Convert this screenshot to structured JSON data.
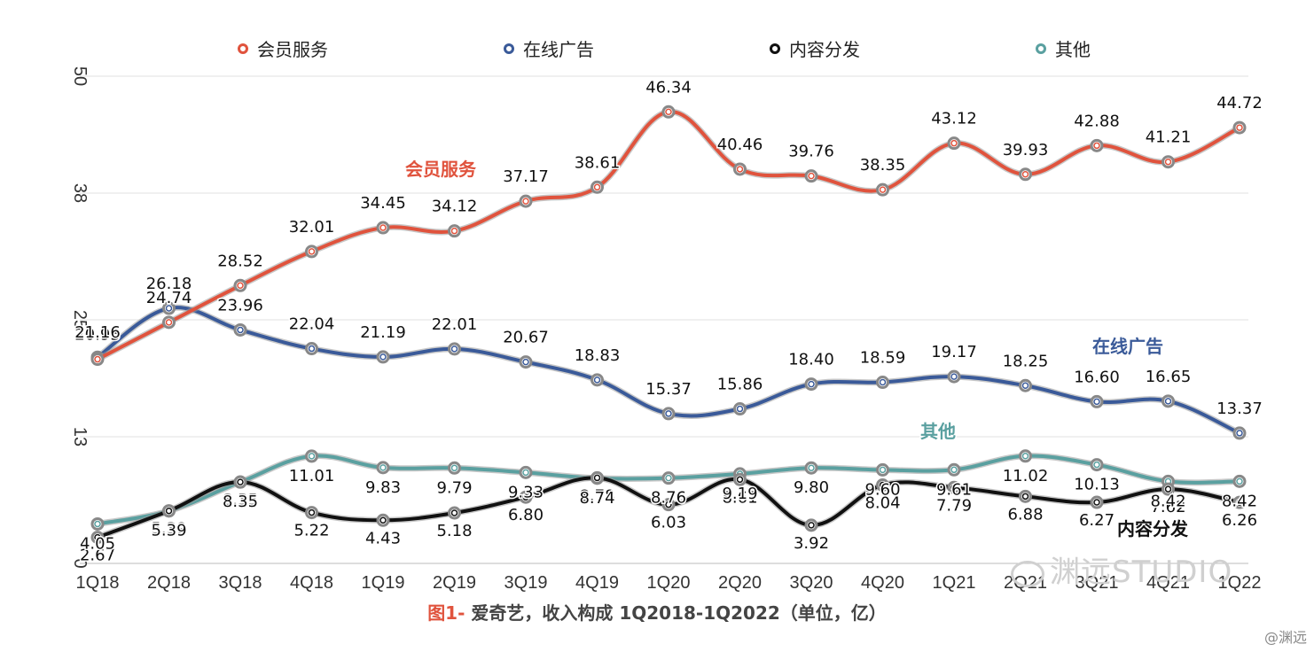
{
  "legend": [
    {
      "label": "会员服务",
      "color": "#e0533d"
    },
    {
      "label": "在线广告",
      "color": "#3a5a99"
    },
    {
      "label": "内容分发",
      "color": "#111111"
    },
    {
      "label": "其他",
      "color": "#5aa0a0"
    }
  ],
  "caption": {
    "prefix": "图1-",
    "text": " 爱奇艺，收入构成 1Q2018-1Q2022（单位，亿）"
  },
  "watermark": "渊远STUDIO",
  "credit": "@渊远",
  "chart_data": {
    "type": "line",
    "categories": [
      "1Q18",
      "2Q18",
      "3Q18",
      "4Q18",
      "1Q19",
      "2Q19",
      "3Q19",
      "4Q19",
      "1Q20",
      "2Q20",
      "3Q20",
      "4Q20",
      "1Q21",
      "2Q21",
      "3Q21",
      "4Q21",
      "1Q22"
    ],
    "ylim": [
      0,
      50
    ],
    "yticks": [
      0,
      13,
      25,
      38,
      50
    ],
    "grid": true,
    "legend_position": "top",
    "series": [
      {
        "name": "会员服务",
        "color": "#e0533d",
        "values": [
          20.95,
          24.74,
          28.52,
          32.01,
          34.45,
          34.12,
          37.17,
          38.61,
          46.34,
          40.46,
          39.76,
          38.35,
          43.12,
          39.93,
          42.88,
          41.21,
          44.72
        ],
        "labels": [
          "20.95",
          "24.74",
          "28.52",
          "32.01",
          "34.45",
          "34.12",
          "37.17",
          "38.61",
          "46.34",
          "40.46",
          "39.76",
          "38.35",
          "43.12",
          "39.93",
          "42.88",
          "41.21",
          "44.72"
        ]
      },
      {
        "name": "在线广告",
        "color": "#3a5a99",
        "values": [
          21.16,
          26.18,
          23.96,
          22.04,
          21.19,
          22.01,
          20.67,
          18.83,
          15.37,
          15.86,
          18.4,
          18.59,
          19.17,
          18.25,
          16.6,
          16.65,
          13.37
        ],
        "labels": [
          "21.16",
          "26.18",
          "23.96",
          "22.04",
          "21.19",
          "22.01",
          "20.67",
          "18.83",
          "15.37",
          "15.86",
          "18.40",
          "18.59",
          "19.17",
          "18.25",
          "16.60",
          "16.65",
          "13.37"
        ]
      },
      {
        "name": "内容分发",
        "color": "#111111",
        "values": [
          2.67,
          5.39,
          8.35,
          5.22,
          4.43,
          5.18,
          6.8,
          8.78,
          6.03,
          8.61,
          3.92,
          8.04,
          7.79,
          6.88,
          6.27,
          7.62,
          6.26
        ],
        "labels": [
          "2.67",
          "5.39",
          "8.35",
          "5.22",
          "4.43",
          "5.18",
          "6.80",
          "8.78",
          "6.03",
          "8.61",
          "3.92",
          "8.04",
          "7.79",
          "6.88",
          "6.27",
          "7.62",
          "6.26"
        ]
      },
      {
        "name": "其他",
        "color": "#5aa0a0",
        "values": [
          4.05,
          5.39,
          8.35,
          11.01,
          9.83,
          9.79,
          9.33,
          8.74,
          8.76,
          9.19,
          9.8,
          9.6,
          9.61,
          11.02,
          10.13,
          8.42,
          8.42
        ],
        "labels": [
          "4.05",
          "5.39",
          "8.35",
          "11.01",
          "9.83",
          "9.79",
          "9.33",
          "8.74",
          "8.76",
          "9.19",
          "9.80",
          "9.60",
          "9.61",
          "11.02",
          "10.13",
          "8.42",
          "8.42"
        ]
      }
    ],
    "inline_labels": [
      {
        "text": "会员服务",
        "color": "#e0533d"
      },
      {
        "text": "在线广告",
        "color": "#3a5a99"
      },
      {
        "text": "其他",
        "color": "#5aa0a0"
      },
      {
        "text": "内容分发",
        "color": "#111111"
      }
    ]
  }
}
